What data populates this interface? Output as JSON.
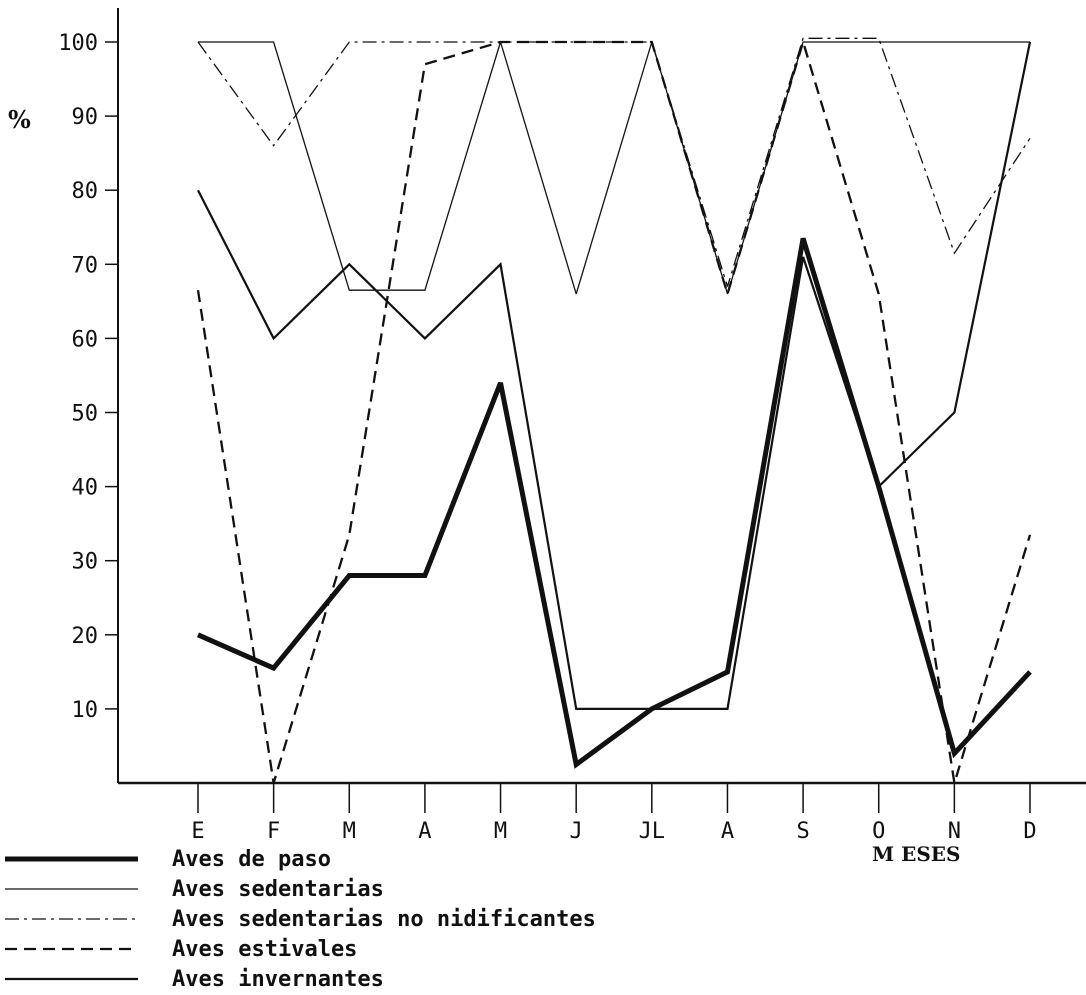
{
  "chart_data": {
    "type": "line",
    "ylabel": "%",
    "xlabel": "M ESES",
    "ylim": [
      0,
      100
    ],
    "yticks": [
      10,
      20,
      30,
      40,
      50,
      60,
      70,
      80,
      90,
      100
    ],
    "categories": [
      "E",
      "F",
      "M",
      "A",
      "M",
      "J",
      "JL",
      "A",
      "S",
      "O",
      "N",
      "D"
    ],
    "grid": false,
    "legend_position": "bottom-left",
    "series": [
      {
        "name": "Aves de paso",
        "style": "thick-solid",
        "values": [
          20,
          15.5,
          28,
          28,
          54,
          2.5,
          10,
          15,
          73.5,
          40,
          4,
          15
        ]
      },
      {
        "name": "Aves sedentarias",
        "style": "thin-solid",
        "values": [
          100,
          100,
          66.5,
          66.5,
          100,
          66,
          100,
          66,
          100,
          100,
          100,
          100
        ]
      },
      {
        "name": "Aves sedentarias no nidificantes",
        "style": "dash-dot",
        "values": [
          100,
          86,
          100,
          100,
          100,
          100,
          100,
          67,
          100.5,
          100.5,
          71.5,
          87
        ]
      },
      {
        "name": "Aves estivales",
        "style": "dashed",
        "values": [
          66.5,
          0,
          33.5,
          97,
          100,
          100,
          100,
          66,
          100,
          66,
          0,
          33.5
        ]
      },
      {
        "name": "Aves invernantes",
        "style": "medium-solid",
        "values": [
          80,
          60,
          70,
          60,
          70,
          10,
          10,
          10,
          71,
          40,
          50,
          100
        ]
      }
    ]
  }
}
